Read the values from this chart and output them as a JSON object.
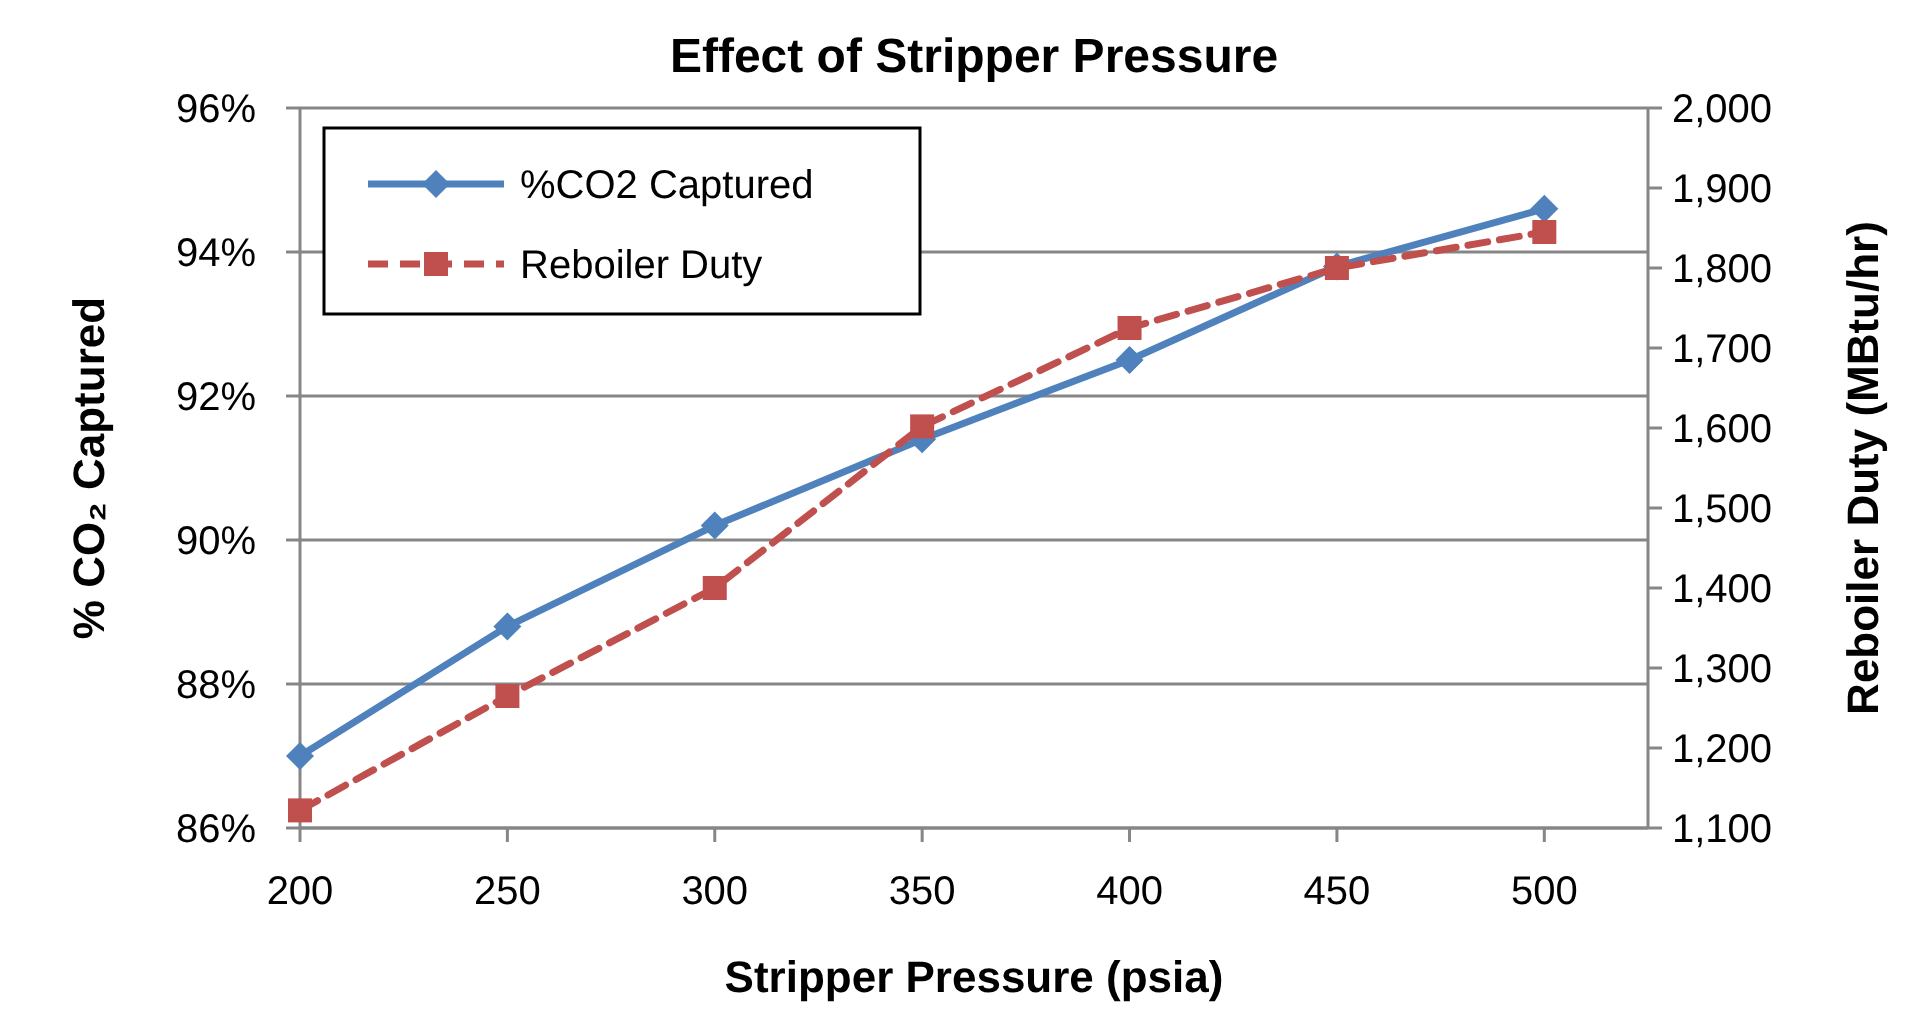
{
  "chart_data": {
    "type": "line",
    "title": "Effect of Stripper Pressure",
    "xlabel": "Stripper Pressure (psia)",
    "ylabel": "% CO₂ Captured",
    "y2label": "Reboiler Duty (MBtu/hr)",
    "x": [
      200,
      250,
      300,
      350,
      400,
      450,
      500
    ],
    "series": [
      {
        "name": "%CO2 Captured",
        "color": "#4f81bd",
        "values": [
          87.0,
          88.8,
          90.2,
          91.4,
          92.5,
          93.8,
          94.6
        ],
        "marker": "diamond",
        "line_style": "solid"
      },
      {
        "name": "Reboiler Duty",
        "color": "#c0504d",
        "values": [
          1122,
          1265,
          1400,
          1602,
          1725,
          1800,
          1845
        ],
        "marker": "square",
        "line_style": "dashed",
        "axis": "y2"
      }
    ],
    "xlim": [
      200,
      525
    ],
    "xticks": [
      200,
      250,
      300,
      350,
      400,
      450,
      500
    ],
    "ylim": [
      86,
      96
    ],
    "yticks": [
      {
        "value": 86,
        "label": "86%"
      },
      {
        "value": 88,
        "label": "88%"
      },
      {
        "value": 90,
        "label": "90%"
      },
      {
        "value": 92,
        "label": "92%"
      },
      {
        "value": 94,
        "label": "94%"
      },
      {
        "value": 96,
        "label": "96%"
      }
    ],
    "y2lim": [
      1100,
      2000
    ],
    "y2ticks": [
      {
        "value": 1100,
        "label": "1,100"
      },
      {
        "value": 1200,
        "label": "1,200"
      },
      {
        "value": 1300,
        "label": "1,300"
      },
      {
        "value": 1400,
        "label": "1,400"
      },
      {
        "value": 1500,
        "label": "1,500"
      },
      {
        "value": 1600,
        "label": "1,600"
      },
      {
        "value": 1700,
        "label": "1,700"
      },
      {
        "value": 1800,
        "label": "1,800"
      },
      {
        "value": 1900,
        "label": "1,900"
      },
      {
        "value": 2000,
        "label": "2,000"
      }
    ],
    "grid": "y",
    "legend": "top left"
  }
}
